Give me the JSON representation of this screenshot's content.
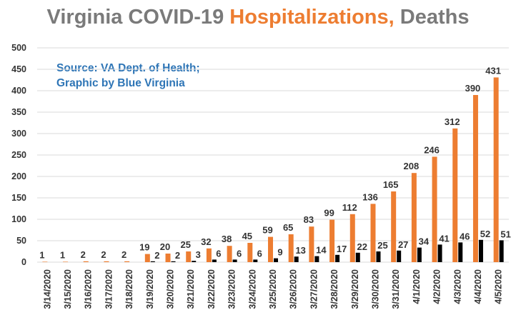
{
  "title": {
    "part1": "Virginia COVID-19 ",
    "part2": "Hospitalizations,",
    "part3": " Deaths"
  },
  "source_note": {
    "line1": "Source: VA Dept. of Health;",
    "line2": "Graphic by Blue Virginia"
  },
  "colors": {
    "hospitalizations": "#ed7d31",
    "deaths": "#000000",
    "title_gray": "#7a7a7a",
    "source_blue": "#2e75b6",
    "gridline": "#d9d9d9"
  },
  "chart_data": {
    "type": "bar",
    "categories": [
      "3/14/2020",
      "3/15/2020",
      "3/16/2020",
      "3/17/2020",
      "3/18/2020",
      "3/19/2020",
      "3/20/2020",
      "3/21/2020",
      "3/22/2020",
      "3/23/2020",
      "3/24/2020",
      "3/25/2020",
      "3/26/2020",
      "3/27/2020",
      "3/28/2020",
      "3/29/2020",
      "3/30/2020",
      "3/31/2020",
      "4/1/2020",
      "4/2/2020",
      "4/3/2020",
      "4/4/2020",
      "4/5/2020"
    ],
    "series": [
      {
        "name": "Hospitalizations",
        "values": [
          1,
          1,
          2,
          2,
          2,
          19,
          20,
          25,
          32,
          38,
          45,
          59,
          65,
          83,
          99,
          112,
          136,
          165,
          208,
          246,
          312,
          390,
          431
        ]
      },
      {
        "name": "Deaths",
        "values": [
          0,
          0,
          0,
          0,
          0,
          2,
          2,
          3,
          6,
          6,
          6,
          9,
          13,
          14,
          17,
          22,
          25,
          27,
          34,
          41,
          46,
          52,
          51
        ]
      }
    ],
    "ylim": [
      0,
      500
    ],
    "yticks": [
      0,
      50,
      100,
      150,
      200,
      250,
      300,
      350,
      400,
      450,
      500
    ],
    "grid": true,
    "legend": "none"
  }
}
